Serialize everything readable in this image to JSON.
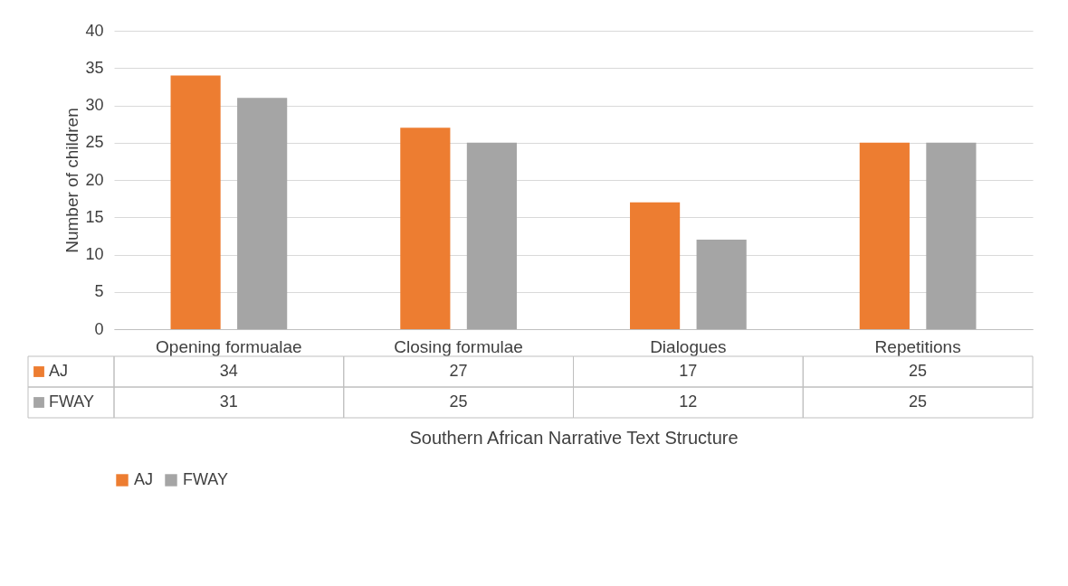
{
  "chart_data": {
    "type": "bar",
    "xlabel": "Southern African Narrative Text Structure",
    "ylabel": "Number of children",
    "categories": [
      "Opening formualae",
      "Closing formulae",
      "Dialogues",
      "Repetitions"
    ],
    "series": [
      {
        "name": "AJ",
        "color": "#ed7d31",
        "values": [
          34,
          27,
          17,
          25
        ]
      },
      {
        "name": "FWAY",
        "color": "#a5a5a5",
        "values": [
          31,
          25,
          12,
          25
        ]
      }
    ],
    "ylim": [
      0,
      40
    ],
    "yticks": [
      0,
      5,
      10,
      15,
      20,
      25,
      30,
      35,
      40
    ],
    "grid": "y",
    "legend": "bottom",
    "data_labels": true
  }
}
